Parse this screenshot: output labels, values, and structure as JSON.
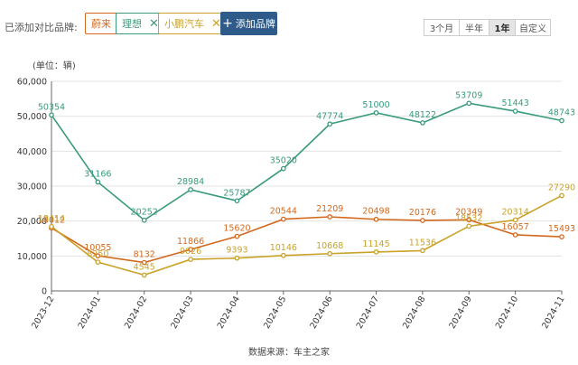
{
  "header": {
    "brand_label": "已添加对比品牌:",
    "brands": [
      {
        "name": "蔚来",
        "color": "#d2691e"
      },
      {
        "name": "理想",
        "color": "#3a9a7e"
      },
      {
        "name": "小鹏汽车",
        "color": "#c9a227"
      }
    ],
    "add_brand_label": "添加品牌",
    "range_tabs": [
      {
        "label": "3个月",
        "active": false
      },
      {
        "label": "半年",
        "active": false
      },
      {
        "label": "1年",
        "active": true
      },
      {
        "label": "自定义",
        "active": false
      }
    ]
  },
  "chart_data": {
    "type": "line",
    "unit_label": "(单位：辆)",
    "categories": [
      "2023-12",
      "2024-01",
      "2024-02",
      "2024-03",
      "2024-04",
      "2024-05",
      "2024-06",
      "2024-07",
      "2024-08",
      "2024-09",
      "2024-10",
      "2024-11"
    ],
    "ylim": [
      0,
      60000
    ],
    "yticks": [
      0,
      10000,
      20000,
      30000,
      40000,
      50000,
      60000
    ],
    "ytick_labels": [
      "0",
      "10,000",
      "20,000",
      "30,000",
      "40,000",
      "50,000",
      "60,000"
    ],
    "grid": true,
    "series": [
      {
        "name": "理想",
        "color": "#3a9a7e",
        "values": [
          50354,
          31166,
          20252,
          28984,
          25787,
          35020,
          47774,
          51000,
          48122,
          53709,
          51443,
          48743
        ]
      },
      {
        "name": "蔚来",
        "color": "#d2691e",
        "values": [
          18012,
          10055,
          8132,
          11866,
          15620,
          20544,
          21209,
          20498,
          20176,
          20349,
          16057,
          15493
        ]
      },
      {
        "name": "小鹏汽车",
        "color": "#c9a227",
        "values": [
          18414,
          8250,
          4545,
          9026,
          9393,
          10146,
          10668,
          11145,
          11536,
          18532,
          20314,
          27290
        ]
      }
    ]
  },
  "source_text": "数据来源：车主之家"
}
